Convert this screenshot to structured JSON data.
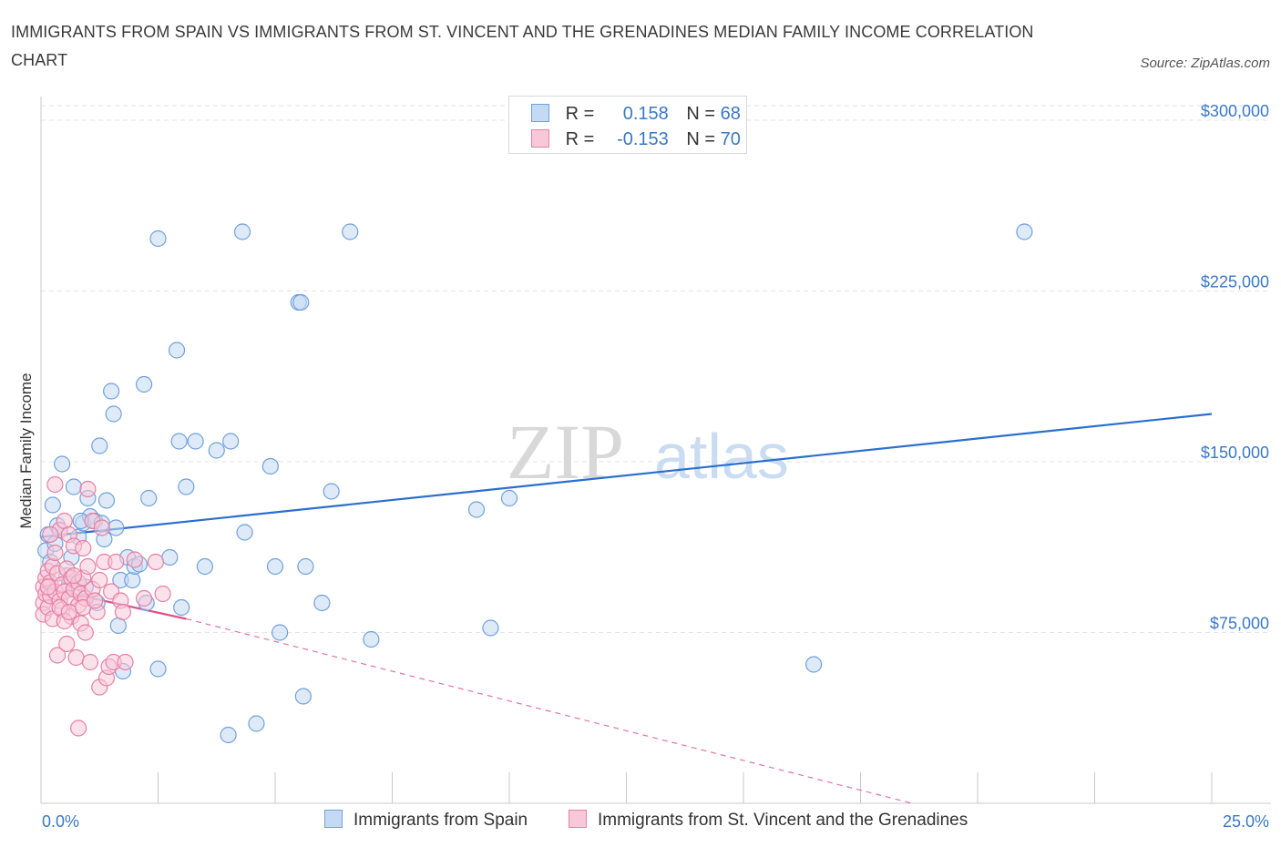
{
  "title": "IMMIGRANTS FROM SPAIN VS IMMIGRANTS FROM ST. VINCENT AND THE GRENADINES MEDIAN FAMILY INCOME CORRELATION CHART",
  "source": "Source: ZipAtlas.com",
  "watermark": {
    "zip": "ZIP",
    "atlas": "atlas"
  },
  "legend": {
    "spain": {
      "r_label": "R =",
      "r_value": "0.158",
      "n_label": "N =",
      "n_value": "68"
    },
    "svg": {
      "r_label": "R =",
      "r_value": "-0.153",
      "n_label": "N =",
      "n_value": "70"
    }
  },
  "colors": {
    "spain": "#6fa0dc",
    "spain_fill": "#c4d9f3",
    "spain_line": "#2a6fd0",
    "svg": "#e77fa3",
    "svg_fill": "#f8c8d8",
    "svg_line": "#e0508a",
    "grid": "#e3e3e3",
    "axis_text": "#3a78c9"
  },
  "chart_data": {
    "type": "scatter",
    "title": "IMMIGRANTS FROM SPAIN VS IMMIGRANTS FROM ST. VINCENT AND THE GRENADINES MEDIAN FAMILY INCOME CORRELATION CHART",
    "xlabel": "",
    "ylabel": "Median Family Income",
    "xlim": [
      0,
      25
    ],
    "ylim": [
      0,
      300000
    ],
    "x_tick_labels": [
      "0.0%",
      "25.0%"
    ],
    "y_ticks": [
      75000,
      150000,
      225000,
      300000
    ],
    "y_tick_labels": [
      "$75,000",
      "$150,000",
      "$225,000",
      "$300,000"
    ],
    "grid": true,
    "series": [
      {
        "name": "Immigrants from Spain",
        "trend": {
          "x": [
            0,
            25
          ],
          "y": [
            117000,
            171000
          ],
          "style": "solid"
        },
        "points": [
          [
            0.1,
            111000
          ],
          [
            0.15,
            118000
          ],
          [
            0.25,
            131000
          ],
          [
            0.35,
            122000
          ],
          [
            0.4,
            120000
          ],
          [
            0.45,
            149000
          ],
          [
            0.6,
            96000
          ],
          [
            0.65,
            108000
          ],
          [
            0.7,
            139000
          ],
          [
            0.8,
            117000
          ],
          [
            0.9,
            123000
          ],
          [
            0.95,
            95000
          ],
          [
            1.0,
            134000
          ],
          [
            1.05,
            126000
          ],
          [
            1.15,
            124000
          ],
          [
            1.2,
            88000
          ],
          [
            1.25,
            157000
          ],
          [
            1.3,
            123000
          ],
          [
            1.4,
            133000
          ],
          [
            1.5,
            181000
          ],
          [
            1.55,
            171000
          ],
          [
            1.6,
            121000
          ],
          [
            1.65,
            78000
          ],
          [
            1.7,
            98000
          ],
          [
            1.75,
            58000
          ],
          [
            1.85,
            108000
          ],
          [
            1.95,
            98000
          ],
          [
            2.0,
            104000
          ],
          [
            2.1,
            105000
          ],
          [
            2.2,
            184000
          ],
          [
            2.25,
            88000
          ],
          [
            2.3,
            134000
          ],
          [
            2.5,
            59000
          ],
          [
            2.5,
            248000
          ],
          [
            2.75,
            108000
          ],
          [
            2.9,
            199000
          ],
          [
            2.95,
            159000
          ],
          [
            3.0,
            86000
          ],
          [
            3.1,
            139000
          ],
          [
            3.3,
            159000
          ],
          [
            3.5,
            104000
          ],
          [
            3.75,
            155000
          ],
          [
            4.0,
            30000
          ],
          [
            4.05,
            159000
          ],
          [
            4.3,
            251000
          ],
          [
            4.35,
            119000
          ],
          [
            4.6,
            35000
          ],
          [
            4.9,
            148000
          ],
          [
            5.0,
            104000
          ],
          [
            5.1,
            75000
          ],
          [
            5.5,
            220000
          ],
          [
            5.55,
            220000
          ],
          [
            5.6,
            47000
          ],
          [
            5.65,
            104000
          ],
          [
            6.0,
            88000
          ],
          [
            6.2,
            137000
          ],
          [
            6.6,
            251000
          ],
          [
            7.05,
            72000
          ],
          [
            9.3,
            129000
          ],
          [
            9.6,
            77000
          ],
          [
            10.0,
            134000
          ],
          [
            16.5,
            61000
          ],
          [
            21.0,
            251000
          ],
          [
            0.2,
            106000
          ],
          [
            0.55,
            100000
          ],
          [
            0.3,
            114000
          ],
          [
            0.85,
            124000
          ],
          [
            1.35,
            116000
          ]
        ]
      },
      {
        "name": "Immigrants from St. Vincent and the Grenadines",
        "trend": {
          "x": [
            0,
            3.1
          ],
          "y": [
            95000,
            81000
          ],
          "style": "solid",
          "extended": {
            "x": [
              3.1,
              18.6
            ],
            "y": [
              81000,
              0
            ],
            "style": "dashed"
          }
        },
        "points": [
          [
            0.05,
            95000
          ],
          [
            0.05,
            88000
          ],
          [
            0.05,
            83000
          ],
          [
            0.1,
            99000
          ],
          [
            0.1,
            92000
          ],
          [
            0.15,
            102000
          ],
          [
            0.15,
            86000
          ],
          [
            0.2,
            97000
          ],
          [
            0.2,
            91000
          ],
          [
            0.25,
            104000
          ],
          [
            0.25,
            81000
          ],
          [
            0.3,
            140000
          ],
          [
            0.3,
            93000
          ],
          [
            0.35,
            65000
          ],
          [
            0.35,
            101000
          ],
          [
            0.4,
            120000
          ],
          [
            0.4,
            89000
          ],
          [
            0.45,
            96000
          ],
          [
            0.45,
            85000
          ],
          [
            0.5,
            124000
          ],
          [
            0.5,
            93000
          ],
          [
            0.55,
            70000
          ],
          [
            0.55,
            103000
          ],
          [
            0.6,
            118000
          ],
          [
            0.6,
            90000
          ],
          [
            0.65,
            99000
          ],
          [
            0.65,
            82000
          ],
          [
            0.7,
            113000
          ],
          [
            0.7,
            94000
          ],
          [
            0.75,
            64000
          ],
          [
            0.8,
            97000
          ],
          [
            0.8,
            87000
          ],
          [
            0.8,
            33000
          ],
          [
            0.85,
            79000
          ],
          [
            0.85,
            92000
          ],
          [
            0.9,
            112000
          ],
          [
            0.9,
            99000
          ],
          [
            0.95,
            75000
          ],
          [
            0.95,
            90000
          ],
          [
            1.0,
            104000
          ],
          [
            1.0,
            138000
          ],
          [
            1.05,
            62000
          ],
          [
            1.1,
            124000
          ],
          [
            1.1,
            94000
          ],
          [
            1.2,
            84000
          ],
          [
            1.25,
            98000
          ],
          [
            1.25,
            51000
          ],
          [
            1.3,
            121000
          ],
          [
            1.35,
            106000
          ],
          [
            1.4,
            55000
          ],
          [
            1.45,
            60000
          ],
          [
            1.5,
            93000
          ],
          [
            1.55,
            62000
          ],
          [
            1.6,
            106000
          ],
          [
            1.7,
            89000
          ],
          [
            1.75,
            84000
          ],
          [
            2.0,
            107000
          ],
          [
            2.2,
            90000
          ],
          [
            2.45,
            106000
          ],
          [
            2.6,
            92000
          ],
          [
            0.2,
            118000
          ],
          [
            0.3,
            110000
          ],
          [
            0.4,
            86000
          ],
          [
            0.5,
            80000
          ],
          [
            0.6,
            84000
          ],
          [
            0.7,
            100000
          ],
          [
            0.9,
            86000
          ],
          [
            1.15,
            89000
          ],
          [
            1.8,
            62000
          ],
          [
            0.15,
            95000
          ]
        ]
      }
    ]
  },
  "bottom_legend": {
    "spain_label": "Immigrants from Spain",
    "svg_label": "Immigrants from St. Vincent and the Grenadines"
  }
}
